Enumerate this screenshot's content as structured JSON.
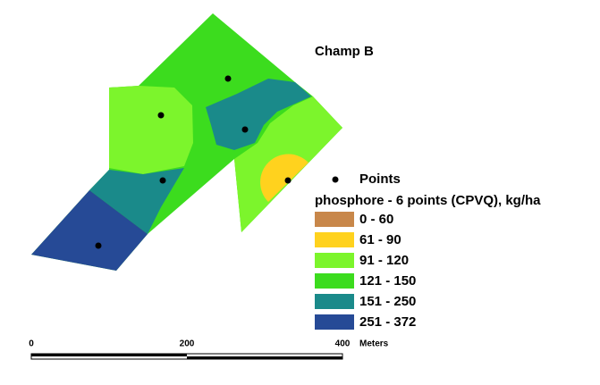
{
  "title": "Champ B",
  "legend": {
    "points_label": "Points",
    "title": "phosphore - 6  points (CPVQ), kg/ha",
    "classes": [
      {
        "label": "0 - 60",
        "color": "#c8874a"
      },
      {
        "label": "61 - 90",
        "color": "#ffd21e"
      },
      {
        "label": "91 - 120",
        "color": "#7cf52c"
      },
      {
        "label": "121 - 150",
        "color": "#3cdc1e"
      },
      {
        "label": "151 - 250",
        "color": "#1a8a8a"
      },
      {
        "label": "251 - 372",
        "color": "#264a96"
      }
    ]
  },
  "scale_bar": {
    "ticks": [
      "0",
      "200",
      "400"
    ],
    "unit": "Meters"
  }
}
